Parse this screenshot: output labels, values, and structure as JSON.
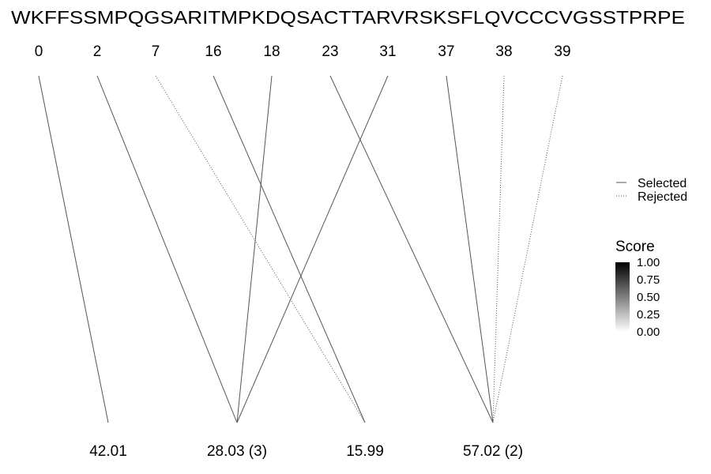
{
  "sequence": "WKFFSSMPQGSARITMPKDQSACTTARVRSKSFLQVCCCVGSSTPRPE",
  "top_positions": [
    "0",
    "2",
    "7",
    "16",
    "18",
    "23",
    "31",
    "37",
    "38",
    "39"
  ],
  "bottom_values": [
    "42.01",
    "28.03 (3)",
    "15.99",
    "57.02 (2)"
  ],
  "connections": [
    {
      "from": 0,
      "to": 0,
      "status": "selected"
    },
    {
      "from": 1,
      "to": 1,
      "status": "selected"
    },
    {
      "from": 2,
      "to": 2,
      "status": "rejected"
    },
    {
      "from": 3,
      "to": 2,
      "status": "selected"
    },
    {
      "from": 4,
      "to": 1,
      "status": "selected"
    },
    {
      "from": 5,
      "to": 3,
      "status": "selected"
    },
    {
      "from": 6,
      "to": 1,
      "status": "selected"
    },
    {
      "from": 7,
      "to": 3,
      "status": "selected"
    },
    {
      "from": 8,
      "to": 3,
      "status": "rejected"
    },
    {
      "from": 9,
      "to": 3,
      "status": "rejected"
    }
  ],
  "legend": {
    "selected_label": "Selected",
    "rejected_label": "Rejected"
  },
  "score_legend": {
    "title": "Score",
    "ticks": [
      "1.00",
      "0.75",
      "0.50",
      "0.25",
      "0.00"
    ],
    "color_high": "#000000",
    "color_low": "#ffffff"
  },
  "line_color": "#555555"
}
